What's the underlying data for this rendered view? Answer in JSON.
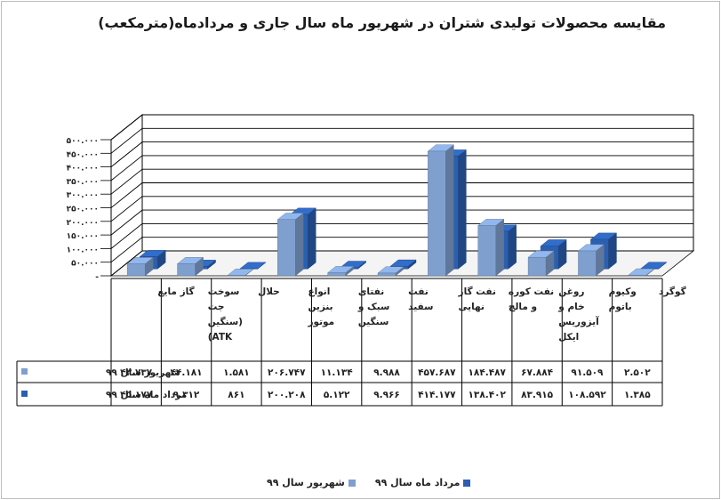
{
  "chart_data": {
    "type": "bar",
    "title": "مقایسه محصولات تولیدی شتران در شهریور ماه سال جاری و مردادماه(مترمکعب)",
    "categories": [
      [
        "گاز مایع"
      ],
      [
        "سوخت",
        "جت",
        "(سنگین",
        "ATK)"
      ],
      [
        "حلال"
      ],
      [
        "انواع",
        "بنزین",
        "موتور"
      ],
      [
        "نفتای",
        "سبک و",
        "سنگین"
      ],
      [
        "نفت",
        "سفید"
      ],
      [
        "نفت گاز",
        "نهایی"
      ],
      [
        "نفت کوره",
        "و مالچ"
      ],
      [
        "روغن",
        "خام و",
        "آیزوریس",
        "ایکل"
      ],
      [
        "وکیوم",
        "باتوم"
      ],
      [
        "گوگرد"
      ]
    ],
    "series": [
      {
        "name": "شهریور سال ۹۹",
        "color": "#7f9fcf",
        "values": [
          43737,
          44181,
          1581,
          206747,
          11134,
          9988,
          457687,
          184487,
          67884,
          91509,
          2502
        ],
        "labels": [
          "۴۳.۷۳۷",
          "۴۴.۱۸۱",
          "۱.۵۸۱",
          "۲۰۶.۷۴۷",
          "۱۱.۱۳۴",
          "۹.۹۸۸",
          "۴۵۷.۶۸۷",
          "۱۸۴.۴۸۷",
          "۶۷.۸۸۴",
          "۹۱.۵۰۹",
          "۲.۵۰۲"
        ]
      },
      {
        "name": "مرداد ماه سال ۹۹",
        "color": "#2b5fb0",
        "values": [
          45177,
          9312,
          861,
          200208,
          5122,
          9966,
          414177,
          138402,
          83915,
          108592,
          1385
        ],
        "labels": [
          "۴۵.۱۷۷",
          "۹.۳۱۲",
          "۸۶۱",
          "۲۰۰.۲۰۸",
          "۵.۱۲۲",
          "۹.۹۶۶",
          "۴۱۴.۱۷۷",
          "۱۳۸.۴۰۲",
          "۸۳.۹۱۵",
          "۱۰۸.۵۹۲",
          "۱.۳۸۵"
        ]
      }
    ],
    "ylim": [
      0,
      500000
    ],
    "ytick_labels": [
      "-",
      "۵۰.۰۰۰",
      "۱۰۰.۰۰۰",
      "۱۵۰.۰۰۰",
      "۲۰۰.۰۰۰",
      "۲۵۰.۰۰۰",
      "۳۰۰.۰۰۰",
      "۳۵۰.۰۰۰",
      "۴۰۰.۰۰۰",
      "۴۵۰.۰۰۰",
      "۵۰۰.۰۰۰"
    ],
    "grid": true,
    "legend_position": "bottom"
  }
}
